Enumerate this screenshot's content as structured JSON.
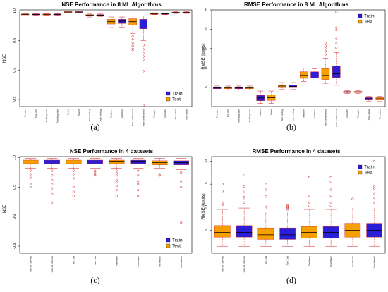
{
  "colors": {
    "train": "#2a1fd6",
    "test": "#f5a000",
    "median": "#000000",
    "outlier": "#d11f1f",
    "whisker": "#d11f1f"
  },
  "chart_data": [
    {
      "type": "boxplot",
      "title": "NSE Performance in 8 ML Algorithms",
      "ylabel": "NSE",
      "xlabel": "",
      "ylim": [
        -0.62,
        1.02
      ],
      "yticks": [
        "-0.5",
        "0.0",
        "0.5",
        "1.0"
      ],
      "ytick_values": [
        -0.5,
        0.0,
        0.5,
        1.0
      ],
      "caption": "(a)",
      "legend": [
        "Train",
        "Test"
      ],
      "legend_position": "right",
      "categories": [
        "Test glm",
        "Train glm",
        "Test bagEarth",
        "Train bagEarth",
        "Test rf",
        "Train rf",
        "Test treebag",
        "Train treebag",
        "Test brnn",
        "Train brnn",
        "Test earthcrossed",
        "Train earthcrossed",
        "Test gbm",
        "Train gbm",
        "Test cubist",
        "Train cubist"
      ],
      "series_of": [
        "Test",
        "Train",
        "Test",
        "Train",
        "Test",
        "Train",
        "Test",
        "Train",
        "Test",
        "Train",
        "Test",
        "Train",
        "Test",
        "Train",
        "Test",
        "Train"
      ],
      "boxes": [
        {
          "wl": 0.92,
          "q1": 0.94,
          "med": 0.945,
          "q3": 0.95,
          "wh": 0.96,
          "out": []
        },
        {
          "wl": 0.93,
          "q1": 0.94,
          "med": 0.945,
          "q3": 0.95,
          "wh": 0.96,
          "out": []
        },
        {
          "wl": 0.93,
          "q1": 0.94,
          "med": 0.945,
          "q3": 0.95,
          "wh": 0.96,
          "out": []
        },
        {
          "wl": 0.93,
          "q1": 0.94,
          "med": 0.945,
          "q3": 0.95,
          "wh": 0.96,
          "out": []
        },
        {
          "wl": 0.97,
          "q1": 0.98,
          "med": 0.985,
          "q3": 0.99,
          "wh": 1.0,
          "out": []
        },
        {
          "wl": 0.97,
          "q1": 0.98,
          "med": 0.985,
          "q3": 0.99,
          "wh": 1.0,
          "out": []
        },
        {
          "wl": 0.9,
          "q1": 0.92,
          "med": 0.93,
          "q3": 0.94,
          "wh": 0.95,
          "out": []
        },
        {
          "wl": 0.91,
          "q1": 0.92,
          "med": 0.93,
          "q3": 0.94,
          "wh": 0.95,
          "out": []
        },
        {
          "wl": 0.72,
          "q1": 0.78,
          "med": 0.82,
          "q3": 0.86,
          "wh": 0.9,
          "out": []
        },
        {
          "wl": 0.73,
          "q1": 0.79,
          "med": 0.83,
          "q3": 0.86,
          "wh": 0.9,
          "out": []
        },
        {
          "wl": 0.62,
          "q1": 0.76,
          "med": 0.82,
          "q3": 0.87,
          "wh": 0.92,
          "out": [
            0.57,
            0.52,
            0.46,
            0.41,
            0.36,
            0.33
          ]
        },
        {
          "wl": 0.5,
          "q1": 0.7,
          "med": 0.8,
          "q3": 0.86,
          "wh": 0.92,
          "out": [
            0.42,
            0.35,
            0.28,
            0.23,
            0.18,
            -0.02,
            -0.6
          ]
        },
        {
          "wl": 0.94,
          "q1": 0.95,
          "med": 0.955,
          "q3": 0.96,
          "wh": 0.97,
          "out": []
        },
        {
          "wl": 0.94,
          "q1": 0.95,
          "med": 0.955,
          "q3": 0.96,
          "wh": 0.97,
          "out": []
        },
        {
          "wl": 0.96,
          "q1": 0.97,
          "med": 0.975,
          "q3": 0.98,
          "wh": 0.99,
          "out": []
        },
        {
          "wl": 0.96,
          "q1": 0.97,
          "med": 0.975,
          "q3": 0.98,
          "wh": 0.99,
          "out": []
        }
      ]
    },
    {
      "type": "boxplot",
      "title": "RMSE Performance in 8 ML Algorithms",
      "ylabel": "RMSE (knots)",
      "xlabel": "",
      "ylim": [
        0,
        25
      ],
      "yticks": [
        "5",
        "10",
        "15",
        "20",
        "25"
      ],
      "ytick_values": [
        5,
        10,
        15,
        20,
        25
      ],
      "caption": "(b)",
      "legend": [
        "Train",
        "Test"
      ],
      "legend_position": "top-right",
      "categories": [
        "Train glm",
        "Test glm",
        "Train bagEarth",
        "Test bagEarth",
        "Train rf",
        "Test rf",
        "Test treebag",
        "Train treebag",
        "Test brnn",
        "Train brnn",
        "Test earthcrossed",
        "Train earthcrossed",
        "Train gbm",
        "Test gbm",
        "Train cubist",
        "Test cubist"
      ],
      "series_of": [
        "Train",
        "Test",
        "Train",
        "Test",
        "Train",
        "Test",
        "Test",
        "Train",
        "Test",
        "Train",
        "Test",
        "Train",
        "Train",
        "Test",
        "Train",
        "Test"
      ],
      "boxes": [
        {
          "wl": 4.3,
          "q1": 4.6,
          "med": 4.8,
          "q3": 5.0,
          "wh": 5.3,
          "out": []
        },
        {
          "wl": 4.3,
          "q1": 4.6,
          "med": 4.8,
          "q3": 5.0,
          "wh": 5.3,
          "out": []
        },
        {
          "wl": 4.3,
          "q1": 4.6,
          "med": 4.8,
          "q3": 5.0,
          "wh": 5.3,
          "out": []
        },
        {
          "wl": 4.3,
          "q1": 4.6,
          "med": 4.8,
          "q3": 5.0,
          "wh": 5.3,
          "out": []
        },
        {
          "wl": 0.8,
          "q1": 1.5,
          "med": 2.2,
          "q3": 2.9,
          "wh": 4.0,
          "out": []
        },
        {
          "wl": 0.8,
          "q1": 1.6,
          "med": 2.3,
          "q3": 3.0,
          "wh": 4.0,
          "out": []
        },
        {
          "wl": 4.4,
          "q1": 4.9,
          "med": 5.3,
          "q3": 5.6,
          "wh": 6.2,
          "out": []
        },
        {
          "wl": 4.4,
          "q1": 4.9,
          "med": 5.2,
          "q3": 5.6,
          "wh": 6.2,
          "out": []
        },
        {
          "wl": 6.5,
          "q1": 7.3,
          "med": 8.0,
          "q3": 9.0,
          "wh": 10.0,
          "out": []
        },
        {
          "wl": 6.8,
          "q1": 7.4,
          "med": 8.1,
          "q3": 9.0,
          "wh": 9.8,
          "out": []
        },
        {
          "wl": 6.0,
          "q1": 7.0,
          "med": 8.0,
          "q3": 9.8,
          "wh": 12.5,
          "out": [
            13.5,
            14.3,
            15.0,
            15.7,
            16.4
          ]
        },
        {
          "wl": 5.5,
          "q1": 7.5,
          "med": 8.5,
          "q3": 10.5,
          "wh": 14.0,
          "out": [
            15.2,
            16.3,
            17.5,
            19.8,
            20.4,
            24.5
          ]
        },
        {
          "wl": 3.4,
          "q1": 3.6,
          "med": 3.8,
          "q3": 3.9,
          "wh": 4.1,
          "out": []
        },
        {
          "wl": 3.4,
          "q1": 3.6,
          "med": 3.8,
          "q3": 3.9,
          "wh": 4.1,
          "out": []
        },
        {
          "wl": 1.3,
          "q1": 1.7,
          "med": 2.0,
          "q3": 2.3,
          "wh": 2.6,
          "out": []
        },
        {
          "wl": 1.3,
          "q1": 1.7,
          "med": 2.0,
          "q3": 2.3,
          "wh": 2.6,
          "out": []
        }
      ]
    },
    {
      "type": "boxplot",
      "title": "NSE Performance in 4 datasets",
      "ylabel": "NSE",
      "xlabel": "",
      "ylim": [
        -0.62,
        1.02
      ],
      "yticks": [
        "-0.5",
        "0.0",
        "0.5",
        "1.0"
      ],
      "ytick_values": [
        -0.5,
        0.0,
        0.5,
        1.0
      ],
      "caption": "(c)",
      "legend": [
        "Train",
        "Test"
      ],
      "legend_position": "right",
      "categories": [
        "Test All Cameras",
        "Train All Cameras",
        "Test Cold",
        "Train Cold",
        "Test Warm",
        "Train Warm",
        "Test Neutral",
        "Train Neutral"
      ],
      "series_of": [
        "Test",
        "Train",
        "Test",
        "Train",
        "Test",
        "Train",
        "Test",
        "Train"
      ],
      "boxes": [
        {
          "wl": 0.82,
          "q1": 0.9,
          "med": 0.93,
          "q3": 0.96,
          "wh": 0.99,
          "out": [
            0.78,
            0.72,
            0.66,
            0.55,
            0.5
          ]
        },
        {
          "wl": 0.82,
          "q1": 0.9,
          "med": 0.93,
          "q3": 0.96,
          "wh": 0.99,
          "out": [
            0.78,
            0.7,
            0.62,
            0.55,
            0.48,
            0.38,
            0.24
          ]
        },
        {
          "wl": 0.82,
          "q1": 0.9,
          "med": 0.93,
          "q3": 0.96,
          "wh": 0.99,
          "out": [
            0.78,
            0.72,
            0.65,
            0.5,
            0.42,
            0.35
          ]
        },
        {
          "wl": 0.82,
          "q1": 0.9,
          "med": 0.93,
          "q3": 0.96,
          "wh": 0.99,
          "out": [
            0.78,
            0.75,
            0.72,
            0.7
          ]
        },
        {
          "wl": 0.82,
          "q1": 0.9,
          "med": 0.94,
          "q3": 0.96,
          "wh": 0.99,
          "out": [
            0.78,
            0.74,
            0.7,
            0.62,
            0.58,
            0.52,
            0.45,
            0.35
          ]
        },
        {
          "wl": 0.82,
          "q1": 0.9,
          "med": 0.94,
          "q3": 0.96,
          "wh": 0.99,
          "out": [
            0.78,
            0.7,
            0.6,
            0.55,
            0.45,
            0.35
          ]
        },
        {
          "wl": 0.82,
          "q1": 0.88,
          "med": 0.92,
          "q3": 0.95,
          "wh": 0.99,
          "out": [
            0.72,
            0.7
          ]
        },
        {
          "wl": 0.8,
          "q1": 0.88,
          "med": 0.92,
          "q3": 0.95,
          "wh": 0.99,
          "out": [
            0.75,
            0.6,
            0.5,
            -0.1
          ]
        }
      ]
    },
    {
      "type": "boxplot",
      "title": "RMSE Performance in 4 datasets",
      "ylabel": "RMSE (knots)",
      "xlabel": "",
      "ylim": [
        0,
        21
      ],
      "yticks": [
        "5",
        "10",
        "15",
        "20"
      ],
      "ytick_values": [
        5,
        10,
        15,
        20
      ],
      "caption": "(d)",
      "legend": [
        "Train",
        "Test"
      ],
      "legend_position": "top-right",
      "categories": [
        "Test All Cameras",
        "Train All Cameras",
        "Test Cold",
        "Train Cold",
        "Test Warm",
        "Train Warm",
        "Test Neutral",
        "Train Neutral"
      ],
      "series_of": [
        "Test",
        "Train",
        "Test",
        "Train",
        "Test",
        "Train",
        "Test",
        "Train"
      ],
      "boxes": [
        {
          "wl": 1.5,
          "q1": 3.5,
          "med": 4.5,
          "q3": 6.0,
          "wh": 9.5,
          "out": [
            10.5,
            11.0,
            13.5,
            15.0
          ]
        },
        {
          "wl": 1.5,
          "q1": 3.5,
          "med": 4.5,
          "q3": 6.0,
          "wh": 9.8,
          "out": [
            11.0,
            11.8,
            12.5,
            13.5,
            14.5,
            17.0
          ]
        },
        {
          "wl": 1.5,
          "q1": 3.0,
          "med": 4.0,
          "q3": 5.5,
          "wh": 9.0,
          "out": [
            9.8,
            10.3,
            12.3,
            13.8,
            15.0
          ]
        },
        {
          "wl": 1.5,
          "q1": 3.0,
          "med": 4.0,
          "q3": 5.5,
          "wh": 9.0,
          "out": [
            9.5,
            9.8,
            10.0,
            10.3,
            10.5
          ]
        },
        {
          "wl": 1.5,
          "q1": 3.3,
          "med": 4.5,
          "q3": 5.8,
          "wh": 9.5,
          "out": [
            10.3,
            11.0,
            12.5,
            16.5
          ]
        },
        {
          "wl": 1.5,
          "q1": 3.3,
          "med": 4.5,
          "q3": 5.8,
          "wh": 9.5,
          "out": [
            10.3,
            11.0,
            12.5,
            13.8,
            15.5,
            16.5
          ]
        },
        {
          "wl": 1.5,
          "q1": 3.5,
          "med": 5.0,
          "q3": 6.5,
          "wh": 10.0,
          "out": [
            11.8
          ]
        },
        {
          "wl": 1.5,
          "q1": 3.5,
          "med": 5.0,
          "q3": 6.5,
          "wh": 10.0,
          "out": [
            11.0,
            12.0,
            13.0,
            14.0,
            14.5,
            20.0
          ]
        }
      ]
    }
  ]
}
